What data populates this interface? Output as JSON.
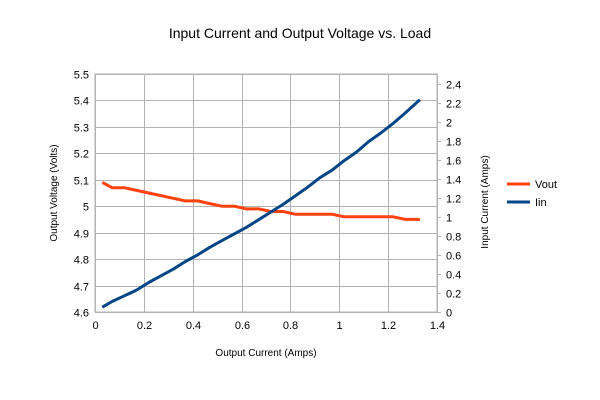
{
  "chart_data": {
    "type": "line",
    "title": "Input Current and Output Voltage vs. Load",
    "xlabel": "Output Current (Amps)",
    "ylabel": "Output Voltage (Volts)",
    "y2label": "Input Current (Amps)",
    "xlim": [
      0,
      1.4
    ],
    "ylim": [
      4.6,
      5.5
    ],
    "y2lim": [
      0,
      2.5
    ],
    "xticks": [
      "0",
      "0.2",
      "0.4",
      "0.6",
      "0.8",
      "1",
      "1.2",
      "1.4"
    ],
    "yticks": [
      "4.6",
      "4.7",
      "4.8",
      "4.9",
      "5",
      "5.1",
      "5.2",
      "5.3",
      "5.4",
      "5.5"
    ],
    "y2ticks": [
      "0",
      "0.2",
      "0.4",
      "0.6",
      "0.8",
      "1",
      "1.2",
      "1.4",
      "1.6",
      "1.8",
      "2",
      "2.2",
      "2.4"
    ],
    "grid": true,
    "legend_position": "right",
    "series": [
      {
        "name": "Vout",
        "axis": "left",
        "color": "#ff420e",
        "x": [
          0.03,
          0.07,
          0.12,
          0.17,
          0.22,
          0.27,
          0.32,
          0.37,
          0.42,
          0.47,
          0.52,
          0.57,
          0.62,
          0.67,
          0.72,
          0.77,
          0.82,
          0.87,
          0.92,
          0.97,
          1.02,
          1.07,
          1.12,
          1.17,
          1.22,
          1.27,
          1.33
        ],
        "y": [
          5.09,
          5.07,
          5.07,
          5.06,
          5.05,
          5.04,
          5.03,
          5.02,
          5.02,
          5.01,
          5.0,
          5.0,
          4.99,
          4.99,
          4.98,
          4.98,
          4.97,
          4.97,
          4.97,
          4.97,
          4.96,
          4.96,
          4.96,
          4.96,
          4.96,
          4.95,
          4.95
        ]
      },
      {
        "name": "Iin",
        "axis": "right",
        "color": "#004586",
        "x": [
          0.03,
          0.07,
          0.12,
          0.17,
          0.22,
          0.27,
          0.32,
          0.37,
          0.42,
          0.47,
          0.52,
          0.57,
          0.62,
          0.67,
          0.72,
          0.77,
          0.82,
          0.87,
          0.92,
          0.97,
          1.02,
          1.07,
          1.12,
          1.17,
          1.22,
          1.27,
          1.33
        ],
        "y": [
          0.05,
          0.11,
          0.17,
          0.23,
          0.31,
          0.38,
          0.45,
          0.53,
          0.6,
          0.68,
          0.75,
          0.82,
          0.89,
          0.97,
          1.05,
          1.13,
          1.22,
          1.31,
          1.41,
          1.49,
          1.59,
          1.68,
          1.79,
          1.88,
          1.98,
          2.09,
          2.23
        ]
      }
    ]
  }
}
